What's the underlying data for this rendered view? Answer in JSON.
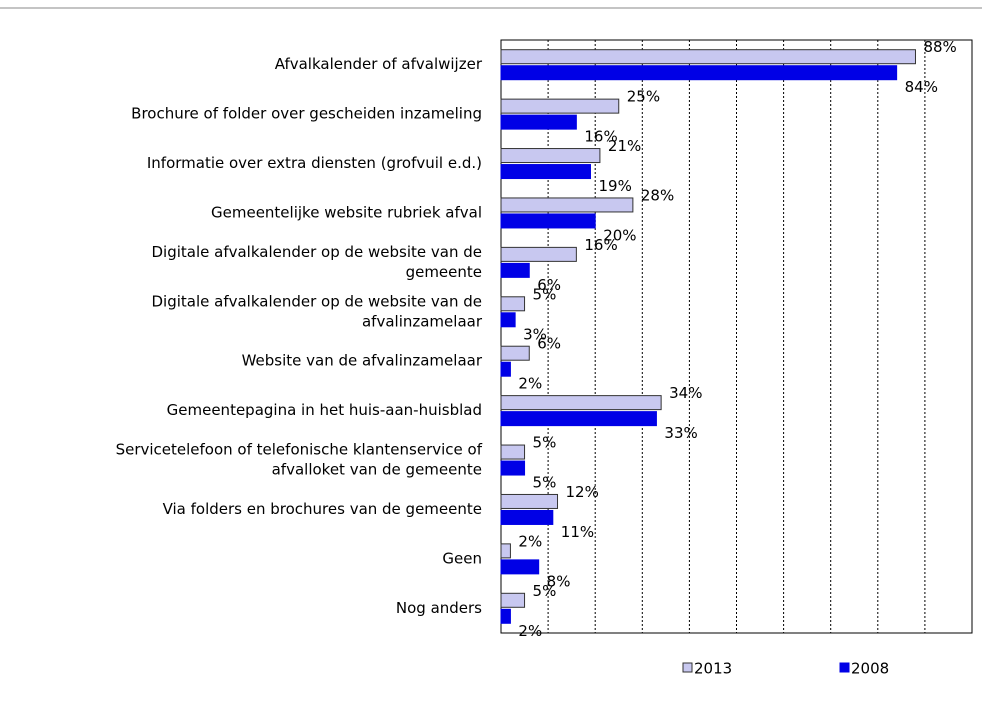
{
  "chart_data": {
    "type": "hbar",
    "categories": [
      [
        "Afvalkalender of afvalwijzer"
      ],
      [
        "Brochure of folder over gescheiden inzameling"
      ],
      [
        "Informatie over extra diensten (grofvuil e.d.)"
      ],
      [
        "Gemeentelijke website rubriek afval"
      ],
      [
        "Digitale afvalkalender op de website van de",
        "gemeente"
      ],
      [
        "Digitale afvalkalender op de website van de",
        "afvalinzamelaar"
      ],
      [
        "Website van de afvalinzamelaar"
      ],
      [
        "Gemeentepagina in het huis-aan-huisblad"
      ],
      [
        "Servicetelefoon of telefonische klantenservice of",
        "afvalloket van de gemeente"
      ],
      [
        "Via folders en brochures van de gemeente"
      ],
      [
        "Geen"
      ],
      [
        "Nog anders"
      ]
    ],
    "series": [
      {
        "name": "2013",
        "color": "#c8c8f0",
        "values": [
          88,
          25,
          21,
          28,
          16,
          5,
          6,
          34,
          5,
          12,
          2,
          5
        ],
        "value_labels": [
          "88%",
          "25%",
          "21%",
          "28%",
          "16%",
          "5%",
          "6%",
          "34%",
          "5%",
          "12%",
          "2%",
          "5%"
        ]
      },
      {
        "name": "2008",
        "color": "#0000e6",
        "values": [
          84,
          16,
          19,
          20,
          6,
          3,
          2,
          33,
          5,
          11,
          8,
          2
        ],
        "value_labels": [
          "84%",
          "16%",
          "19%",
          "20%",
          "6%",
          "3%",
          "2%",
          "33%",
          "5%",
          "11%",
          "8%",
          "2%"
        ]
      }
    ],
    "xlim": [
      0,
      100
    ],
    "xticks": [
      10,
      20,
      30,
      40,
      50,
      60,
      70,
      80,
      90
    ],
    "grid": true,
    "legend": "bottom"
  }
}
